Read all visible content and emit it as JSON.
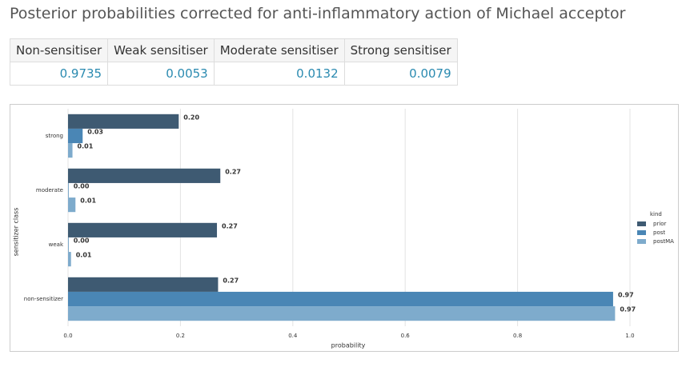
{
  "header": {
    "title": "Posterior probabilities corrected for anti-inflammatory action of Michael acceptor"
  },
  "table": {
    "header": [
      "Non-sensitiser",
      "Weak sensitiser",
      "Moderate sensitiser",
      "Strong sensitiser"
    ],
    "rows": [
      [
        "0.9735",
        "0.0053",
        "0.0132",
        "0.0079"
      ]
    ]
  },
  "chart_data": {
    "type": "barh",
    "xlabel": "probability",
    "ylabel": "sensitizer class",
    "categories": [
      "strong",
      "moderate",
      "weak",
      "non-sensitizer"
    ],
    "series": [
      {
        "name": "prior",
        "color": "#3e5a72",
        "values": [
          0.197,
          0.271,
          0.265,
          0.267
        ],
        "value_labels": [
          "0.20",
          "0.27",
          "0.27",
          "0.27"
        ]
      },
      {
        "name": "post",
        "color": "#4a86b5",
        "values": [
          0.026,
          0.001,
          0.001,
          0.97
        ],
        "value_labels": [
          "0.03",
          "0.00",
          "0.00",
          "0.97"
        ]
      },
      {
        "name": "postMA",
        "color": "#7eabcc",
        "values": [
          0.0079,
          0.0132,
          0.0053,
          0.9735
        ],
        "value_labels": [
          "0.01",
          "0.01",
          "0.01",
          "0.97"
        ]
      }
    ],
    "xlim": [
      0,
      1
    ],
    "xticks": [
      {
        "value": 0,
        "label": "0.0"
      },
      0.2,
      0.4,
      0.6,
      0.8,
      {
        "value": 1,
        "label": "1.0"
      }
    ],
    "grid": true,
    "legend_title": "kind",
    "legend": "right"
  }
}
